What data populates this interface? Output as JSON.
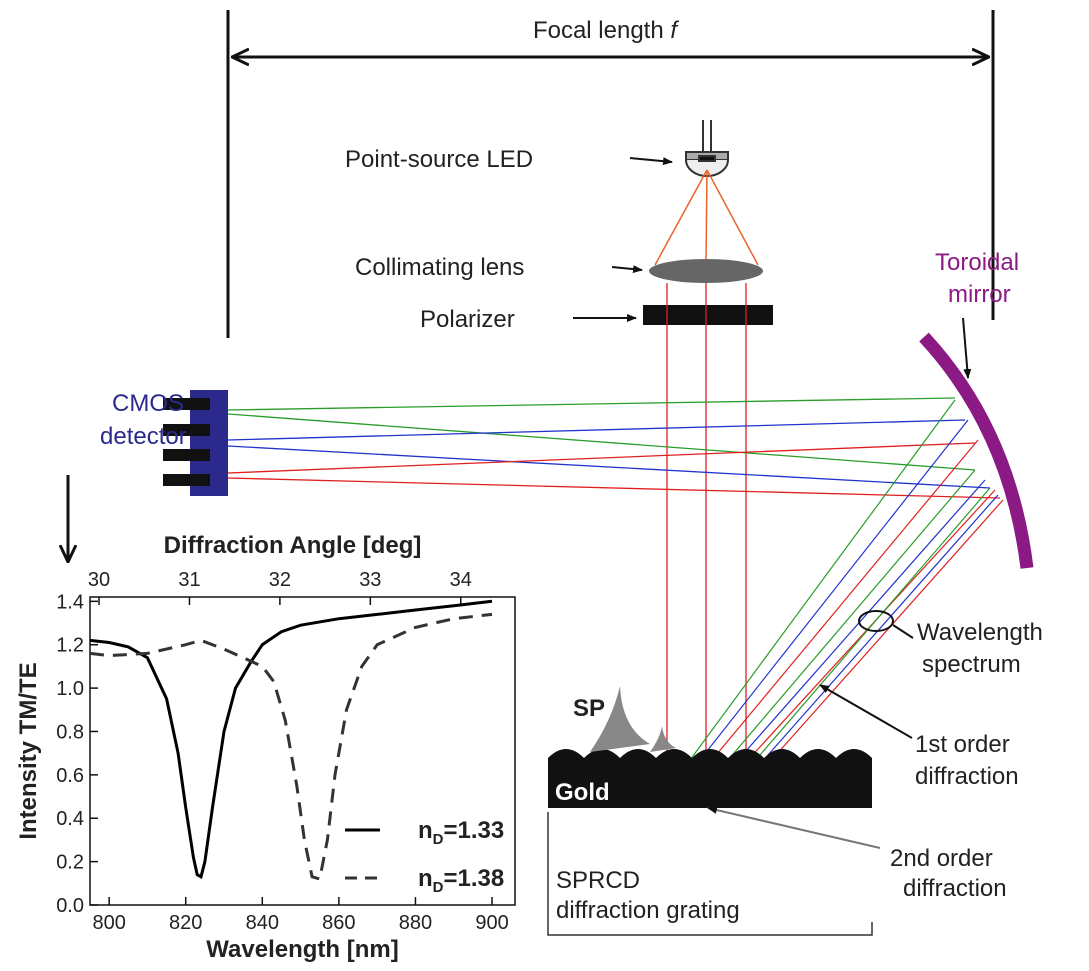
{
  "focal_length_label": "Focal length",
  "focal_length_symbol": "f",
  "led_label": "Point-source LED",
  "lens_label": "Collimating lens",
  "polarizer_label": "Polarizer",
  "mirror_label": [
    "Toroidal",
    "mirror"
  ],
  "detector_label": [
    "CMOS",
    "detector"
  ],
  "spectrum_label": [
    "Wavelength",
    "spectrum"
  ],
  "first_order_label": [
    "1st order",
    "diffraction"
  ],
  "second_order_label": [
    "2nd order",
    "diffraction"
  ],
  "sp_label": "SP",
  "gold_label": "Gold",
  "grating_label": [
    "SPRCD",
    "diffraction grating"
  ],
  "chart_data": {
    "type": "line",
    "x_label": "Wavelength [nm]",
    "x2_label": "Diffraction Angle [deg]",
    "y_label": "Intensity TM/TE",
    "xlim": [
      795,
      906
    ],
    "xticks": [
      800,
      820,
      840,
      860,
      880,
      900
    ],
    "x2lim": [
      29.9,
      34.6
    ],
    "x2ticks": [
      30,
      31,
      32,
      33,
      34
    ],
    "ylim": [
      0,
      1.42
    ],
    "yticks": [
      {
        "value": 0,
        "label": "0.0"
      },
      0.2,
      0.4,
      0.6,
      0.8,
      {
        "value": 1,
        "label": "1.0"
      },
      1.2,
      1.4
    ],
    "series": [
      {
        "name": "nD=1.33",
        "color": "#000000",
        "dash": "solid",
        "x": [
          795,
          800,
          805,
          810,
          815,
          818,
          820,
          822,
          823,
          824,
          825,
          827,
          830,
          833,
          837,
          840,
          845,
          850,
          860,
          870,
          880,
          890,
          900
        ],
        "values": [
          1.22,
          1.21,
          1.19,
          1.14,
          0.95,
          0.7,
          0.45,
          0.22,
          0.14,
          0.13,
          0.2,
          0.45,
          0.8,
          1.0,
          1.12,
          1.2,
          1.26,
          1.29,
          1.32,
          1.34,
          1.36,
          1.38,
          1.4
        ]
      },
      {
        "name": "nD=1.38",
        "color": "#333333",
        "dash": "dashed",
        "x": [
          795,
          800,
          810,
          820,
          824,
          830,
          835,
          840,
          843,
          846,
          849,
          851,
          853,
          855,
          857,
          859,
          862,
          866,
          870,
          880,
          890,
          900
        ],
        "values": [
          1.16,
          1.15,
          1.16,
          1.2,
          1.22,
          1.18,
          1.14,
          1.1,
          1.03,
          0.85,
          0.55,
          0.3,
          0.13,
          0.12,
          0.3,
          0.6,
          0.9,
          1.1,
          1.2,
          1.28,
          1.32,
          1.34
        ]
      }
    ]
  }
}
